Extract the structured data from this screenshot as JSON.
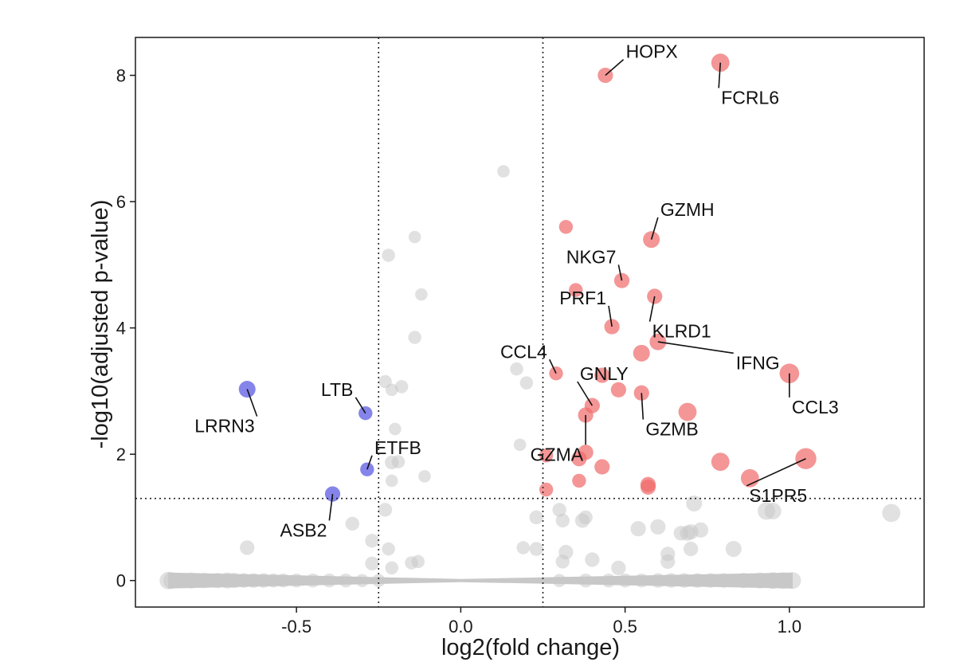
{
  "chart_data": {
    "type": "scatter",
    "title": "",
    "xlabel": "log2(fold change)",
    "ylabel": "-log10(adjusted p-value)",
    "xlim": [
      -0.99,
      1.41
    ],
    "ylim": [
      -0.42,
      8.6
    ],
    "xticks": [
      -0.5,
      0.0,
      0.5,
      1.0
    ],
    "xtick_labels": [
      "-0.5",
      "0.0",
      "0.5",
      "1.0"
    ],
    "yticks": [
      0,
      2,
      4,
      6,
      8
    ],
    "ytick_labels": [
      "0",
      "2",
      "4",
      "6",
      "8"
    ],
    "grid": false,
    "legend": "none",
    "thresholds": {
      "x": [
        -0.25,
        0.25
      ],
      "y": 1.3
    },
    "colors": {
      "up": "#f06a6a",
      "down": "#6f6fe6",
      "ns": "#c8c8c8",
      "baseline": "#bebebe"
    },
    "up_points": [
      {
        "x": 0.44,
        "y": 8.0,
        "s": 0.4
      },
      {
        "x": 0.79,
        "y": 8.2,
        "s": 0.6
      },
      {
        "x": 0.32,
        "y": 5.6,
        "s": 0.3
      },
      {
        "x": 0.58,
        "y": 5.4,
        "s": 0.5
      },
      {
        "x": 0.35,
        "y": 4.6,
        "s": 0.3
      },
      {
        "x": 0.49,
        "y": 4.75,
        "s": 0.4
      },
      {
        "x": 0.59,
        "y": 4.5,
        "s": 0.4
      },
      {
        "x": 0.46,
        "y": 4.02,
        "s": 0.4
      },
      {
        "x": 0.6,
        "y": 3.78,
        "s": 0.5
      },
      {
        "x": 0.55,
        "y": 3.6,
        "s": 0.5
      },
      {
        "x": 0.29,
        "y": 3.28,
        "s": 0.3
      },
      {
        "x": 0.43,
        "y": 3.25,
        "s": 0.4
      },
      {
        "x": 0.48,
        "y": 3.02,
        "s": 0.4
      },
      {
        "x": 0.55,
        "y": 2.97,
        "s": 0.4
      },
      {
        "x": 1.0,
        "y": 3.28,
        "s": 0.7
      },
      {
        "x": 0.4,
        "y": 2.77,
        "s": 0.4
      },
      {
        "x": 0.38,
        "y": 2.62,
        "s": 0.4
      },
      {
        "x": 0.69,
        "y": 2.67,
        "s": 0.6
      },
      {
        "x": 0.26,
        "y": 1.98,
        "s": 0.3
      },
      {
        "x": 0.38,
        "y": 2.03,
        "s": 0.4
      },
      {
        "x": 0.36,
        "y": 1.93,
        "s": 0.4
      },
      {
        "x": 0.43,
        "y": 1.8,
        "s": 0.4
      },
      {
        "x": 0.79,
        "y": 1.88,
        "s": 0.6
      },
      {
        "x": 1.05,
        "y": 1.93,
        "s": 0.8
      },
      {
        "x": 0.36,
        "y": 1.58,
        "s": 0.3
      },
      {
        "x": 0.57,
        "y": 1.52,
        "s": 0.4
      },
      {
        "x": 0.57,
        "y": 1.48,
        "s": 0.4
      },
      {
        "x": 0.26,
        "y": 1.44,
        "s": 0.3
      },
      {
        "x": 0.88,
        "y": 1.62,
        "s": 0.6
      }
    ],
    "down_points": [
      {
        "x": -0.65,
        "y": 3.03,
        "s": 0.5
      },
      {
        "x": -0.29,
        "y": 2.65,
        "s": 0.3
      },
      {
        "x": -0.285,
        "y": 1.76,
        "s": 0.3
      },
      {
        "x": -0.39,
        "y": 1.37,
        "s": 0.4
      }
    ],
    "ns_points": [
      {
        "x": 0.13,
        "y": 6.48,
        "s": 0.2
      },
      {
        "x": -0.14,
        "y": 5.44,
        "s": 0.2
      },
      {
        "x": -0.22,
        "y": 5.15,
        "s": 0.25
      },
      {
        "x": -0.12,
        "y": 4.53,
        "s": 0.2
      },
      {
        "x": -0.14,
        "y": 3.85,
        "s": 0.25
      },
      {
        "x": -0.23,
        "y": 3.15,
        "s": 0.25
      },
      {
        "x": -0.18,
        "y": 3.07,
        "s": 0.25
      },
      {
        "x": -0.21,
        "y": 3.02,
        "s": 0.2
      },
      {
        "x": 0.17,
        "y": 3.35,
        "s": 0.25
      },
      {
        "x": 0.2,
        "y": 3.13,
        "s": 0.25
      },
      {
        "x": -0.2,
        "y": 2.4,
        "s": 0.2
      },
      {
        "x": -0.21,
        "y": 1.87,
        "s": 0.3
      },
      {
        "x": -0.19,
        "y": 1.88,
        "s": 0.25
      },
      {
        "x": -0.11,
        "y": 1.65,
        "s": 0.2
      },
      {
        "x": -0.21,
        "y": 1.58,
        "s": 0.2
      },
      {
        "x": 0.18,
        "y": 2.15,
        "s": 0.2
      },
      {
        "x": -0.23,
        "y": 1.12,
        "s": 0.3
      },
      {
        "x": -0.33,
        "y": 0.9,
        "s": 0.3
      },
      {
        "x": -0.65,
        "y": 0.52,
        "s": 0.35
      },
      {
        "x": -0.27,
        "y": 0.63,
        "s": 0.3
      },
      {
        "x": -0.22,
        "y": 0.5,
        "s": 0.25
      },
      {
        "x": -0.21,
        "y": 0.2,
        "s": 0.25
      },
      {
        "x": -0.27,
        "y": 0.27,
        "s": 0.3
      },
      {
        "x": -0.15,
        "y": 0.28,
        "s": 0.25
      },
      {
        "x": -0.13,
        "y": 0.3,
        "s": 0.25
      },
      {
        "x": 0.23,
        "y": 1.0,
        "s": 0.3
      },
      {
        "x": 0.3,
        "y": 1.12,
        "s": 0.3
      },
      {
        "x": 0.31,
        "y": 0.95,
        "s": 0.3
      },
      {
        "x": 0.37,
        "y": 0.95,
        "s": 0.35
      },
      {
        "x": 0.38,
        "y": 1.0,
        "s": 0.3
      },
      {
        "x": 0.19,
        "y": 0.52,
        "s": 0.25
      },
      {
        "x": 0.23,
        "y": 0.5,
        "s": 0.3
      },
      {
        "x": 0.32,
        "y": 0.45,
        "s": 0.35
      },
      {
        "x": 0.31,
        "y": 0.3,
        "s": 0.3
      },
      {
        "x": 0.4,
        "y": 0.33,
        "s": 0.35
      },
      {
        "x": 0.48,
        "y": 0.2,
        "s": 0.35
      },
      {
        "x": 0.54,
        "y": 0.82,
        "s": 0.4
      },
      {
        "x": 0.6,
        "y": 0.85,
        "s": 0.4
      },
      {
        "x": 0.63,
        "y": 0.42,
        "s": 0.35
      },
      {
        "x": 0.63,
        "y": 0.3,
        "s": 0.35
      },
      {
        "x": 0.67,
        "y": 0.75,
        "s": 0.35
      },
      {
        "x": 0.69,
        "y": 0.75,
        "s": 0.4
      },
      {
        "x": 0.7,
        "y": 0.77,
        "s": 0.4
      },
      {
        "x": 0.73,
        "y": 0.8,
        "s": 0.4
      },
      {
        "x": 0.71,
        "y": 1.22,
        "s": 0.45
      },
      {
        "x": 0.83,
        "y": 0.5,
        "s": 0.45
      },
      {
        "x": 0.93,
        "y": 1.1,
        "s": 0.55
      },
      {
        "x": 0.95,
        "y": 1.1,
        "s": 0.5
      },
      {
        "x": 1.31,
        "y": 1.07,
        "s": 0.6
      },
      {
        "x": 0.7,
        "y": 0.5,
        "s": 0.35
      }
    ],
    "baseline": {
      "x_min": -0.89,
      "x_max": 1.01,
      "y": 0.0
    },
    "baseline_points": [
      {
        "x": -0.89,
        "s": 0.55
      },
      {
        "x": -0.88,
        "s": 0.5
      },
      {
        "x": -0.82,
        "s": 0.45
      },
      {
        "x": -0.78,
        "s": 0.4
      },
      {
        "x": -0.74,
        "s": 0.4
      },
      {
        "x": -0.71,
        "s": 0.45
      },
      {
        "x": -0.69,
        "s": 0.4
      },
      {
        "x": -0.66,
        "s": 0.35
      },
      {
        "x": -0.63,
        "s": 0.35
      },
      {
        "x": -0.6,
        "s": 0.35
      },
      {
        "x": -0.57,
        "s": 0.3
      },
      {
        "x": -0.54,
        "s": 0.3
      },
      {
        "x": -0.5,
        "s": 0.3
      },
      {
        "x": -0.45,
        "s": 0.3
      },
      {
        "x": -0.4,
        "s": 0.3
      },
      {
        "x": -0.35,
        "s": 0.3
      },
      {
        "x": -0.3,
        "s": 0.25
      },
      {
        "x": -0.25,
        "s": 0.25
      },
      {
        "x": 0.3,
        "s": 0.25
      },
      {
        "x": 0.38,
        "s": 0.3
      },
      {
        "x": 0.45,
        "s": 0.3
      },
      {
        "x": 0.5,
        "s": 0.3
      },
      {
        "x": 0.55,
        "s": 0.3
      },
      {
        "x": 0.6,
        "s": 0.35
      },
      {
        "x": 0.64,
        "s": 0.35
      },
      {
        "x": 0.68,
        "s": 0.35
      },
      {
        "x": 0.72,
        "s": 0.35
      },
      {
        "x": 0.76,
        "s": 0.35
      },
      {
        "x": 0.8,
        "s": 0.35
      },
      {
        "x": 0.86,
        "s": 0.4
      },
      {
        "x": 0.91,
        "s": 0.45
      },
      {
        "x": 0.95,
        "s": 0.5
      },
      {
        "x": 0.98,
        "s": 0.5
      },
      {
        "x": 1.01,
        "s": 0.5
      }
    ],
    "labels": [
      {
        "text": "HOPX",
        "x": 0.44,
        "y": 8.0,
        "lx": 0.495,
        "ly": 8.25,
        "anchor": "start"
      },
      {
        "text": "FCRL6",
        "x": 0.79,
        "y": 8.2,
        "lx": 0.785,
        "ly": 7.8,
        "anchor": "start"
      },
      {
        "text": "GZMH",
        "x": 0.58,
        "y": 5.4,
        "lx": 0.6,
        "ly": 5.75,
        "anchor": "start"
      },
      {
        "text": "NKG7",
        "x": 0.49,
        "y": 4.75,
        "lx": 0.48,
        "ly": 5.0,
        "anchor": "end"
      },
      {
        "text": "PRF1",
        "x": 0.46,
        "y": 4.02,
        "lx": 0.45,
        "ly": 4.35,
        "anchor": "end"
      },
      {
        "text": "KLRD1",
        "x": 0.59,
        "y": 4.5,
        "lx": 0.575,
        "ly": 4.1,
        "anchor": "start"
      },
      {
        "text": "IFNG",
        "x": 0.6,
        "y": 3.78,
        "lx": 0.83,
        "ly": 3.6,
        "anchor": "start"
      },
      {
        "text": "CCL4",
        "x": 0.29,
        "y": 3.28,
        "lx": 0.27,
        "ly": 3.5,
        "anchor": "end"
      },
      {
        "text": "GNLY",
        "x": 0.4,
        "y": 2.77,
        "lx": 0.355,
        "ly": 3.15,
        "anchor": "start"
      },
      {
        "text": "CCL3",
        "x": 1.0,
        "y": 3.28,
        "lx": 1.0,
        "ly": 2.9,
        "anchor": "start"
      },
      {
        "text": "GZMB",
        "x": 0.55,
        "y": 2.97,
        "lx": 0.555,
        "ly": 2.55,
        "anchor": "start"
      },
      {
        "text": "GZMA",
        "x": 0.38,
        "y": 2.62,
        "lx": 0.38,
        "ly": 2.15,
        "anchor": "end"
      },
      {
        "text": "S1PR5",
        "x": 1.05,
        "y": 1.93,
        "lx": 0.87,
        "ly": 1.5,
        "anchor": "start"
      },
      {
        "text": "LRRN3",
        "x": -0.65,
        "y": 3.03,
        "lx": -0.62,
        "ly": 2.6,
        "anchor": "end"
      },
      {
        "text": "LTB",
        "x": -0.29,
        "y": 2.65,
        "lx": -0.32,
        "ly": 2.9,
        "anchor": "end"
      },
      {
        "text": "ETFB",
        "x": -0.285,
        "y": 1.76,
        "lx": -0.27,
        "ly": 1.98,
        "anchor": "start"
      },
      {
        "text": "ASB2",
        "x": -0.39,
        "y": 1.37,
        "lx": -0.4,
        "ly": 0.95,
        "anchor": "end"
      }
    ]
  }
}
